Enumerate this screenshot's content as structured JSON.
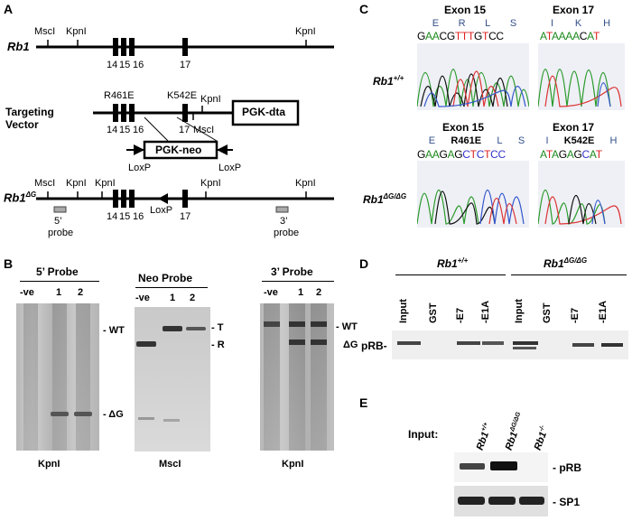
{
  "panels": {
    "A": {
      "label": "A",
      "rb1_label": "Rb1",
      "targeting_label_1": "Targeting",
      "targeting_label_2": "Vector",
      "rb1dg_label": "Rb1",
      "rb1dg_sup": "ΔG",
      "sites": {
        "mscl": "MscI",
        "kpnl": "KpnI"
      },
      "exons": {
        "e14": "14",
        "e15": "15",
        "e16": "16",
        "e17": "17"
      },
      "mutations": {
        "m1": "R461E",
        "m2": "K542E"
      },
      "pgk_dta": "PGK-dta",
      "pgk_neo": "PGK-neo",
      "loxp": "LoxP",
      "probe5_a": "5’",
      "probe5_b": "probe",
      "probe3_a": "3’",
      "probe3_b": "probe"
    },
    "B": {
      "label": "B",
      "p5_title": "5’ Probe",
      "neo_title": "Neo Probe",
      "p3_title": "3’ Probe",
      "lanes": [
        "-ve",
        "1",
        "2"
      ],
      "wt": "- WT",
      "dg": "- ΔG",
      "t": "- T",
      "r": "- R",
      "wt3": "- WT",
      "dg3": "ΔG",
      "enz1": "KpnI",
      "enz2": "MscI",
      "enz3": "KpnI"
    },
    "C": {
      "label": "C",
      "exon15": "Exon 15",
      "exon17": "Exon 17",
      "wt_geno": "Rb1",
      "wt_sup": "+/+",
      "mut_geno": "Rb1",
      "mut_sup": "ΔG/ΔG",
      "aa_wt15": [
        "E",
        "R",
        "L",
        "S"
      ],
      "aa_wt17": [
        "I",
        "K",
        "H"
      ],
      "seq_wt15": "GAACGTTTGTCC",
      "seq_wt17": "ATAAAACAT",
      "aa_mut15": [
        "E",
        "R461E",
        "L",
        "S"
      ],
      "aa_mut17": [
        "I",
        "K542E",
        "H"
      ],
      "seq_mut15": "GAAGAGCTCTCC",
      "seq_mut17": "ATAGAGCAT"
    },
    "D": {
      "label": "D",
      "grp1": "Rb1",
      "grp1_sup": "+/+",
      "grp2": "Rb1",
      "grp2_sup": "ΔG/ΔG",
      "lanes": [
        "Input",
        "GST",
        "-E7",
        "-E1A",
        "Input",
        "GST",
        "-E7",
        "-E1A"
      ],
      "prb": "pRB-"
    },
    "E": {
      "label": "E",
      "input": "Input:",
      "cols": [
        {
          "name": "Rb1",
          "sup": "+/+"
        },
        {
          "name": "Rb1",
          "sup": "ΔG/ΔG"
        },
        {
          "name": "Rb1",
          "sup": "-/-"
        }
      ],
      "prb": "- pRB",
      "sp1": "- SP1"
    }
  }
}
